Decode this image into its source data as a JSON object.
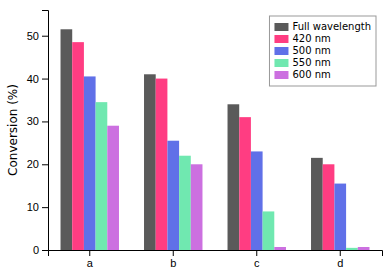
{
  "chart_data": {
    "type": "bar",
    "categories": [
      "a",
      "b",
      "c",
      "d"
    ],
    "series": [
      {
        "name": "Full wavelength",
        "color": "#5a5a5a",
        "values": [
          51.5,
          41.0,
          34.0,
          21.5
        ]
      },
      {
        "name": "420 nm",
        "color": "#FF3D82",
        "values": [
          48.5,
          40.0,
          31.0,
          20.0
        ]
      },
      {
        "name": "500 nm",
        "color": "#6070E8",
        "values": [
          40.5,
          25.5,
          23.0,
          15.5
        ]
      },
      {
        "name": "550 nm",
        "color": "#70E8B0",
        "values": [
          34.5,
          22.0,
          9.0,
          0.5
        ]
      },
      {
        "name": "600 nm",
        "color": "#CC70E0",
        "values": [
          29.0,
          20.0,
          0.7,
          0.7
        ]
      }
    ],
    "ylabel": "Conversion (%)",
    "ylim": [
      0,
      56
    ],
    "yticks": [
      0,
      10,
      20,
      30,
      40,
      50
    ],
    "grid": false,
    "legend": "upper-right"
  }
}
